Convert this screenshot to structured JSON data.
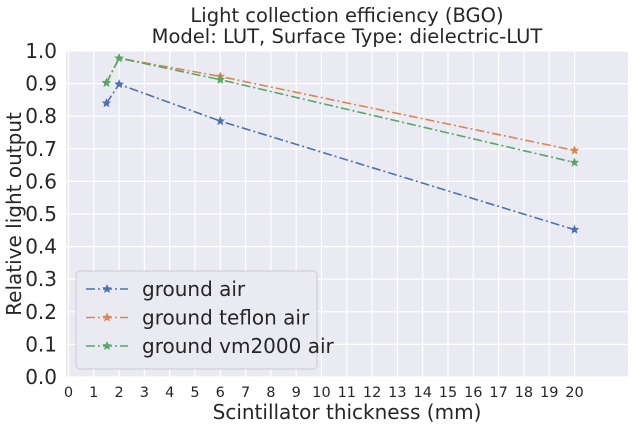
{
  "chart_data": {
    "type": "line",
    "title": "Light collection efficiency (BGO)",
    "subtitle": "Model: LUT, Surface Type: dielectric-LUT",
    "xlabel": "Scintillator thickness (mm)",
    "ylabel": "Relative light output",
    "xlim": [
      0,
      22
    ],
    "ylim": [
      0.0,
      1.0
    ],
    "xticks": [
      "0",
      "1",
      "2",
      "3",
      "4",
      "5",
      "6",
      "7",
      "8",
      "9",
      "10",
      "11",
      "12",
      "13",
      "14",
      "15",
      "16",
      "17",
      "18",
      "19",
      "20"
    ],
    "yticks": [
      "0.0",
      "0.1",
      "0.2",
      "0.3",
      "0.4",
      "0.5",
      "0.6",
      "0.7",
      "0.8",
      "0.9",
      "1.0"
    ],
    "grid": true,
    "legend_position": "lower-left",
    "series": [
      {
        "name": "ground air",
        "color": "#4c72b0",
        "marker": "star",
        "linestyle": "dash-dot",
        "x": [
          1.5,
          2,
          6,
          20
        ],
        "y": [
          0.84,
          0.898,
          0.785,
          0.452
        ]
      },
      {
        "name": "ground teflon air",
        "color": "#dd8452",
        "marker": "star",
        "linestyle": "dash-dot",
        "x": [
          1.5,
          2,
          6,
          20
        ],
        "y": [
          0.903,
          0.978,
          0.922,
          0.695
        ]
      },
      {
        "name": "ground vm2000 air",
        "color": "#55a868",
        "marker": "star",
        "linestyle": "dash-dot",
        "x": [
          1.5,
          2,
          6,
          20
        ],
        "y": [
          0.902,
          0.978,
          0.912,
          0.658
        ]
      }
    ]
  }
}
